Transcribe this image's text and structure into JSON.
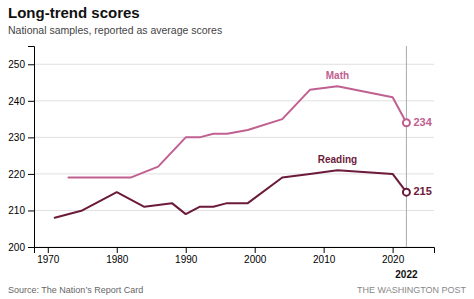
{
  "chart_data": {
    "type": "line",
    "title": "Long-trend scores",
    "subtitle": "National samples, reported as average scores",
    "series": [
      {
        "name": "Math",
        "color": "#c06090",
        "x": [
          1973,
          1978,
          1982,
          1986,
          1990,
          1992,
          1994,
          1996,
          1999,
          2004,
          2008,
          2012,
          2020,
          2022
        ],
        "values": [
          219,
          219,
          219,
          222,
          230,
          230,
          231,
          231,
          232,
          235,
          243,
          244,
          241,
          234
        ]
      },
      {
        "name": "Reading",
        "color": "#6b1a3a",
        "x": [
          1971,
          1975,
          1980,
          1984,
          1988,
          1990,
          1992,
          1994,
          1996,
          1999,
          2004,
          2008,
          2012,
          2020,
          2022
        ],
        "values": [
          208,
          210,
          215,
          211,
          212,
          209,
          211,
          211,
          212,
          212,
          219,
          220,
          221,
          220,
          215
        ]
      }
    ],
    "annotations": [
      {
        "text": "234",
        "x": 2022,
        "y": 234
      },
      {
        "text": "215",
        "x": 2022,
        "y": 215
      },
      {
        "text": "2022",
        "x": 2022
      },
      {
        "text": "Source: The Nation’s Report Card"
      },
      {
        "text": "THE WASHINGTON POST"
      }
    ],
    "xlim": [
      1968,
      2026
    ],
    "xticks": [
      1970,
      1980,
      1990,
      2000,
      2010,
      2020
    ],
    "ylim": [
      200,
      255
    ],
    "yticks": [
      200,
      210,
      220,
      230,
      240,
      250
    ],
    "grid": true
  }
}
